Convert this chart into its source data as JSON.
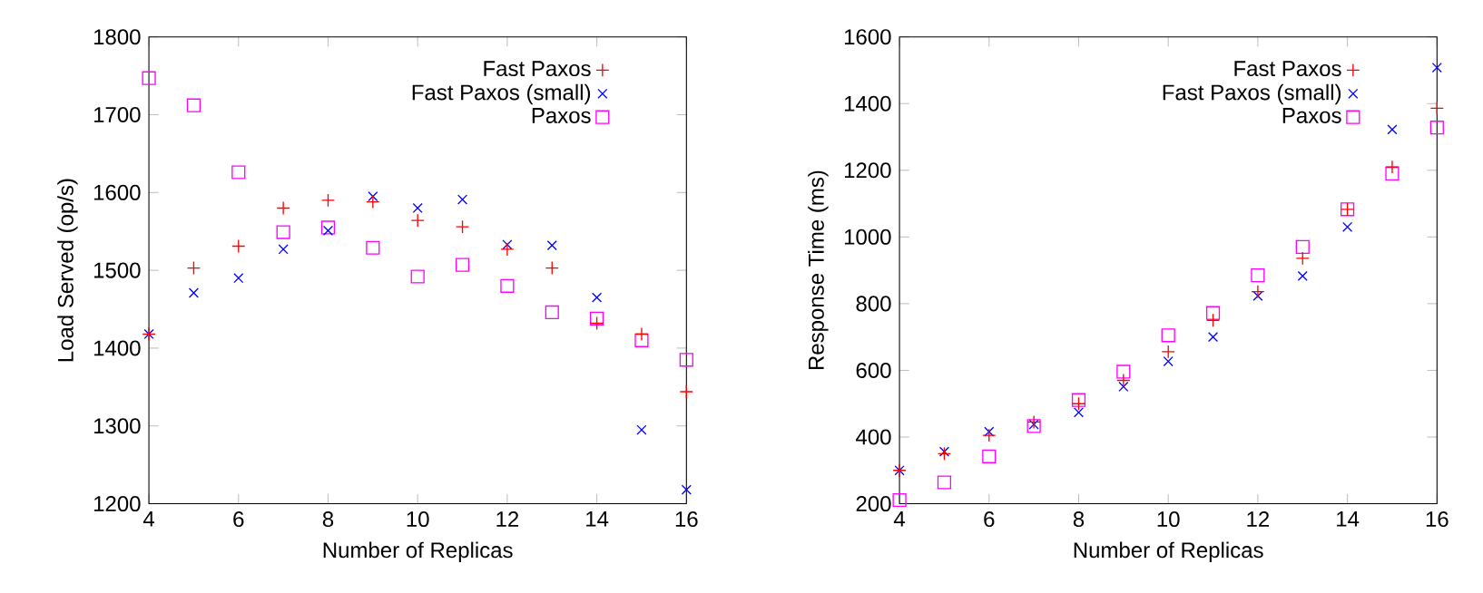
{
  "chart_data": [
    {
      "type": "scatter",
      "xlabel": "Number of Replicas",
      "ylabel": "Load Served (op/s)",
      "x": [
        4,
        5,
        6,
        7,
        8,
        9,
        10,
        11,
        12,
        13,
        14,
        15,
        16
      ],
      "xlim": [
        4,
        16
      ],
      "xticks": [
        4,
        6,
        8,
        10,
        12,
        14,
        16
      ],
      "ylim": [
        1200,
        1800
      ],
      "yticks": [
        1200,
        1300,
        1400,
        1500,
        1600,
        1700,
        1800
      ],
      "legend": "top right",
      "grid": false,
      "series": [
        {
          "name": "Fast Paxos",
          "color": "#ff0000",
          "marker": "plus",
          "values": [
            1418,
            1503,
            1531,
            1580,
            1590,
            1588,
            1564,
            1556,
            1527,
            1503,
            1432,
            1418,
            1344
          ]
        },
        {
          "name": "Fast Paxos (small)",
          "color": "#0000ff",
          "marker": "cross",
          "values": [
            1418,
            1471,
            1490,
            1527,
            1551,
            1595,
            1580,
            1591,
            1533,
            1532,
            1465,
            1295,
            1218
          ]
        },
        {
          "name": "Paxos",
          "color": "#ff00ff",
          "marker": "square",
          "values": [
            1747,
            1712,
            1626,
            1549,
            1555,
            1529,
            1492,
            1507,
            1480,
            1446,
            1438,
            1410,
            1385
          ]
        }
      ]
    },
    {
      "type": "scatter",
      "xlabel": "Number of Replicas",
      "ylabel": "Response Time (ms)",
      "x": [
        4,
        5,
        6,
        7,
        8,
        9,
        10,
        11,
        12,
        13,
        14,
        15,
        16
      ],
      "xlim": [
        4,
        16
      ],
      "xticks": [
        4,
        6,
        8,
        10,
        12,
        14,
        16
      ],
      "ylim": [
        200,
        1600
      ],
      "yticks": [
        200,
        400,
        600,
        800,
        1000,
        1200,
        1400,
        1600
      ],
      "legend": "top right",
      "grid": false,
      "series": [
        {
          "name": "Fast Paxos",
          "color": "#ff0000",
          "marker": "plus",
          "values": [
            300,
            350,
            405,
            445,
            500,
            570,
            656,
            750,
            836,
            936,
            1083,
            1210,
            1386
          ]
        },
        {
          "name": "Fast Paxos (small)",
          "color": "#0000ff",
          "marker": "cross",
          "values": [
            300,
            356,
            416,
            438,
            474,
            551,
            627,
            700,
            823,
            883,
            1030,
            1322,
            1508
          ]
        },
        {
          "name": "Paxos",
          "color": "#ff00ff",
          "marker": "square",
          "values": [
            211,
            264,
            342,
            433,
            511,
            596,
            705,
            772,
            885,
            970,
            1083,
            1190,
            1328
          ]
        }
      ]
    }
  ]
}
